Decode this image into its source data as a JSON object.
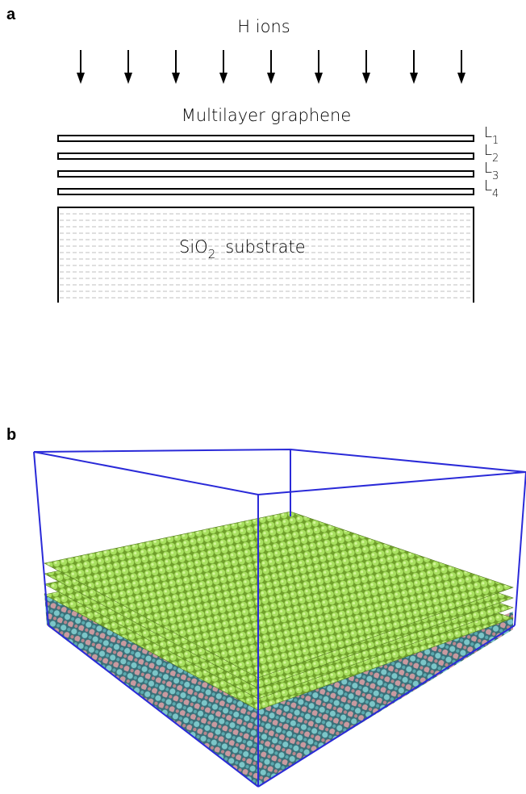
{
  "panel_a": {
    "label": "a",
    "ion_label": "H ions",
    "graphene_label": "Multilayer graphene",
    "layers": [
      {
        "letter": "L",
        "index": "1"
      },
      {
        "letter": "L",
        "index": "2"
      },
      {
        "letter": "L",
        "index": "3"
      },
      {
        "letter": "L",
        "index": "4"
      }
    ],
    "substrate_label": {
      "prefix": "SiO",
      "subscript": "2",
      "suffix": "substrate"
    }
  },
  "panel_b": {
    "label": "b"
  }
}
